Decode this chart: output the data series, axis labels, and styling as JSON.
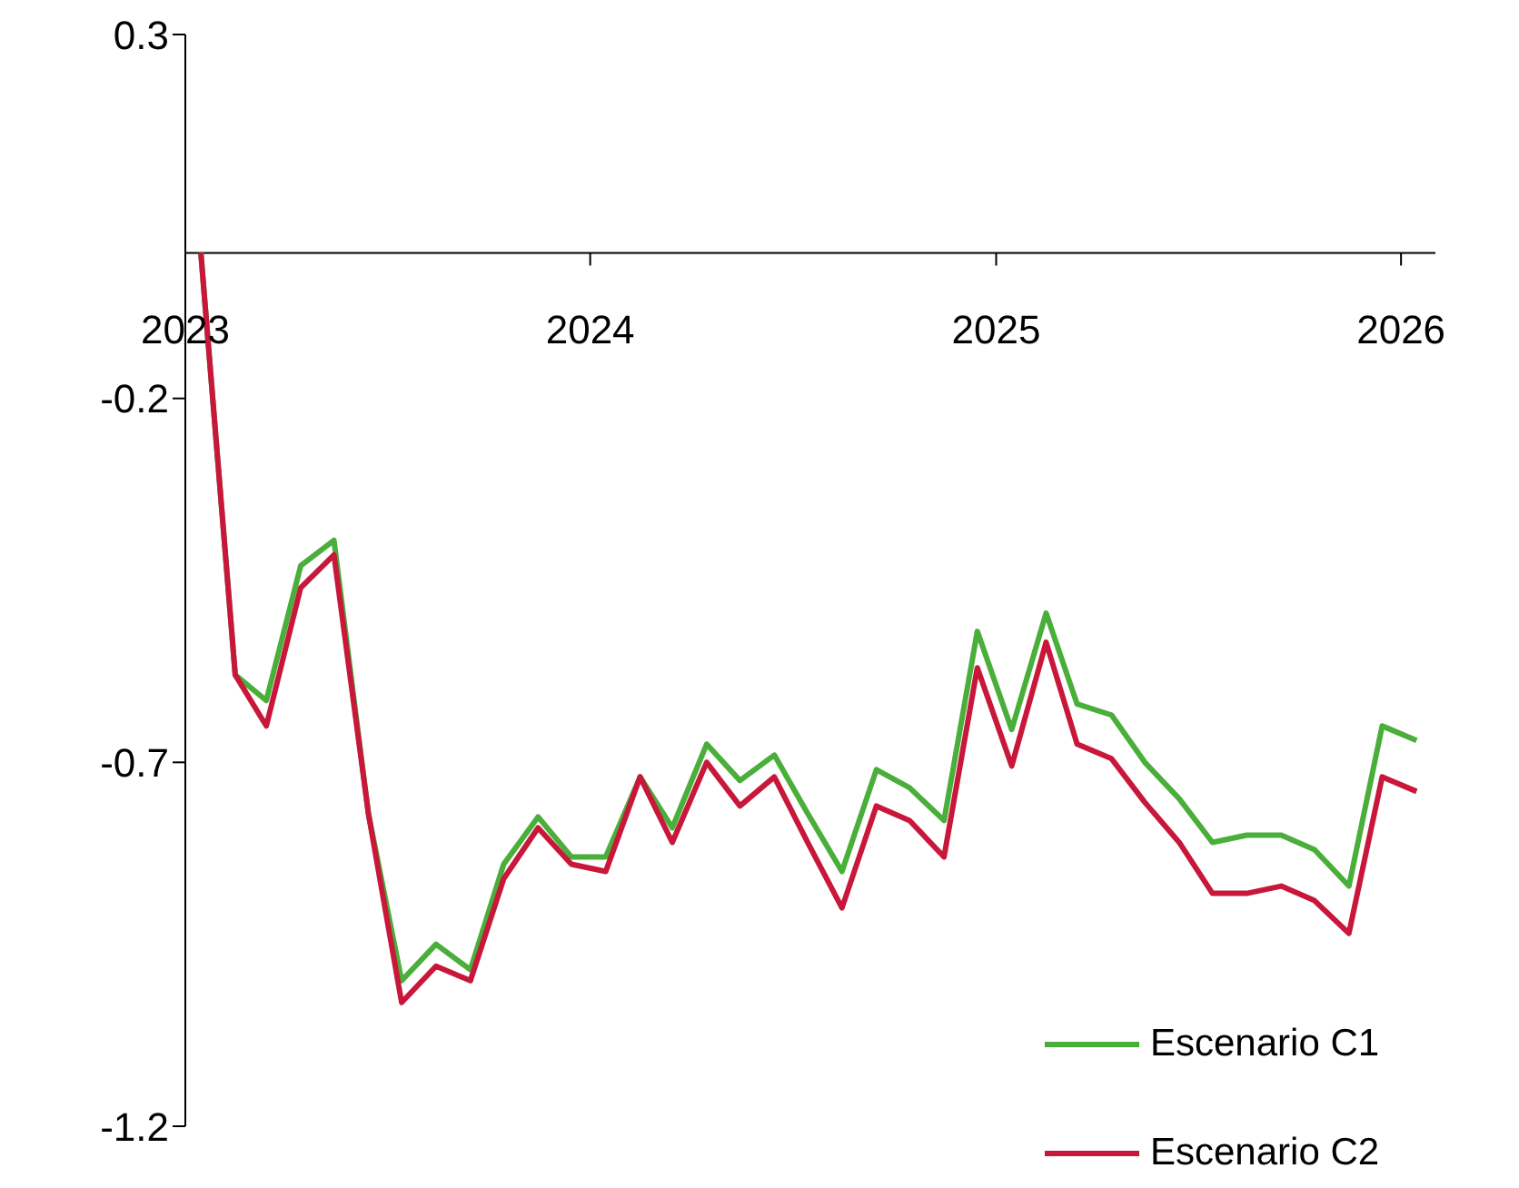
{
  "chart_data": {
    "type": "line",
    "x": [
      "2023-01-15",
      "2023-02-15",
      "2023-03-15",
      "2023-04-15",
      "2023-05-15",
      "2023-06-15",
      "2023-07-15",
      "2023-08-15",
      "2023-09-15",
      "2023-10-15",
      "2023-11-15",
      "2023-12-15",
      "2024-01-15",
      "2024-02-15",
      "2024-03-15",
      "2024-04-15",
      "2024-05-15",
      "2024-06-15",
      "2024-07-15",
      "2024-08-15",
      "2024-09-15",
      "2024-10-15",
      "2024-11-15",
      "2024-12-15",
      "2025-01-15",
      "2025-02-15",
      "2025-03-15",
      "2025-04-15",
      "2025-05-15",
      "2025-06-15",
      "2025-07-15",
      "2025-08-15",
      "2025-09-15",
      "2025-10-15",
      "2025-11-15",
      "2025-12-15",
      "2026-01-15"
    ],
    "series": [
      {
        "name": "Escenario C1",
        "color": "#4aae3a",
        "values": [
          0,
          -0.58,
          -0.615,
          -0.43,
          -0.395,
          -0.77,
          -1.0,
          -0.95,
          -0.985,
          -0.84,
          -0.775,
          -0.83,
          -0.83,
          -0.72,
          -0.79,
          -0.675,
          -0.725,
          -0.69,
          -0.77,
          -0.85,
          -0.71,
          -0.735,
          -0.78,
          -0.52,
          -0.655,
          -0.495,
          -0.62,
          -0.635,
          -0.7,
          -0.75,
          -0.81,
          -0.8,
          -0.8,
          -0.82,
          -0.87,
          -0.65,
          -0.67
        ]
      },
      {
        "name": "Escenario C2",
        "color": "#c8173a",
        "values": [
          0,
          -0.58,
          -0.65,
          -0.46,
          -0.415,
          -0.77,
          -1.03,
          -0.98,
          -1.0,
          -0.86,
          -0.79,
          -0.84,
          -0.85,
          -0.72,
          -0.81,
          -0.7,
          -0.76,
          -0.72,
          -0.81,
          -0.9,
          -0.76,
          -0.78,
          -0.83,
          -0.57,
          -0.705,
          -0.535,
          -0.675,
          -0.695,
          -0.755,
          -0.81,
          -0.88,
          -0.88,
          -0.87,
          -0.89,
          -0.935,
          -0.72,
          -0.74
        ]
      }
    ],
    "xlim": [
      "2023-01-01",
      "2026-02-01"
    ],
    "xticks": [
      "2023",
      "2024",
      "2025",
      "2026"
    ],
    "ylim": [
      -1.2,
      0.3
    ],
    "yticks": [
      0.3,
      -0.2,
      -0.7,
      -1.2
    ],
    "grid": false,
    "legend": "bottom right",
    "marker": "none",
    "line_style": "solid"
  }
}
